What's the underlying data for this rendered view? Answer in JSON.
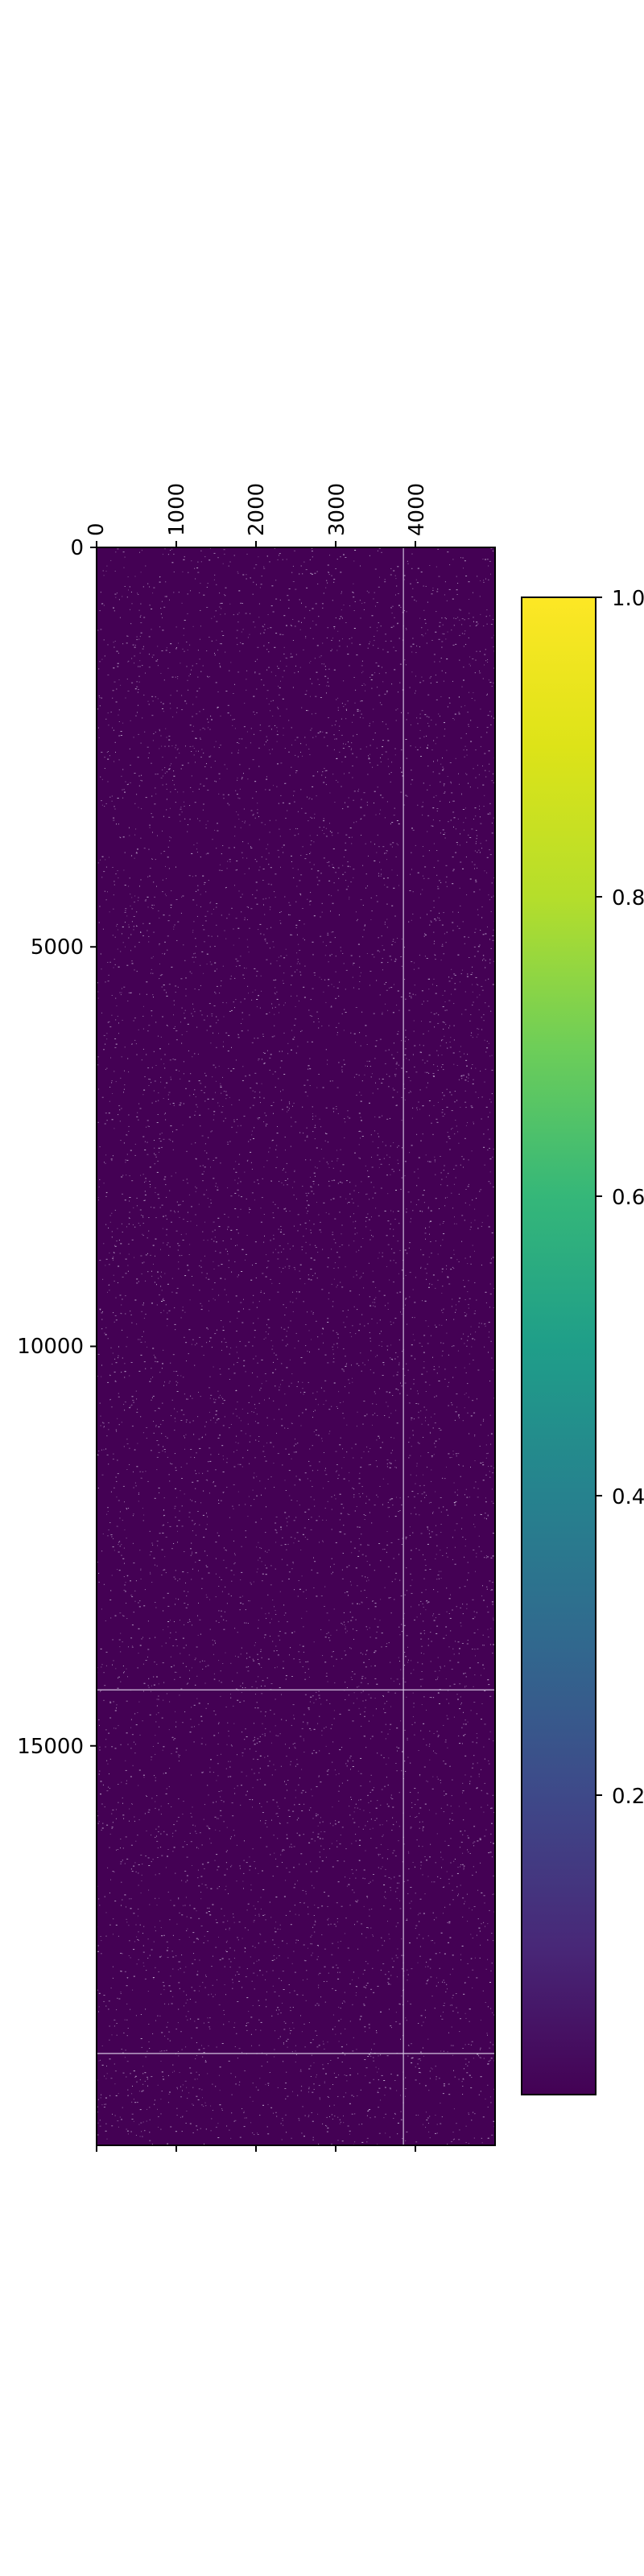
{
  "chart_data": {
    "type": "heatmap",
    "title": "",
    "xlabel": "",
    "ylabel": "",
    "x_axis_position": "top",
    "xlim": [
      0,
      4999
    ],
    "ylim": [
      0,
      19999
    ],
    "x_ticks": [
      0,
      1000,
      2000,
      3000,
      4000
    ],
    "x_tick_labels": [
      "0",
      "1000",
      "2000",
      "3000",
      "4000"
    ],
    "y_ticks": [
      0,
      5000,
      10000,
      15000
    ],
    "y_tick_labels": [
      "0",
      "5000",
      "10000",
      "15000"
    ],
    "values_description": "sparse binary matrix, mostly 0 with scattered 1 entries",
    "bright_columns": [
      3850
    ],
    "bright_rows": [
      14300,
      18850
    ],
    "grid": false,
    "colorbar": {
      "colormap": "viridis",
      "range": [
        0,
        1
      ],
      "ticks": [
        0.2,
        0.4,
        0.6,
        0.8,
        1.0
      ],
      "tick_labels": [
        "0.2",
        "0.4",
        "0.6",
        "0.8",
        "1.0"
      ]
    },
    "colors": {
      "low": "#440154",
      "high": "#fde725",
      "speckle": "#d9cde6"
    }
  }
}
